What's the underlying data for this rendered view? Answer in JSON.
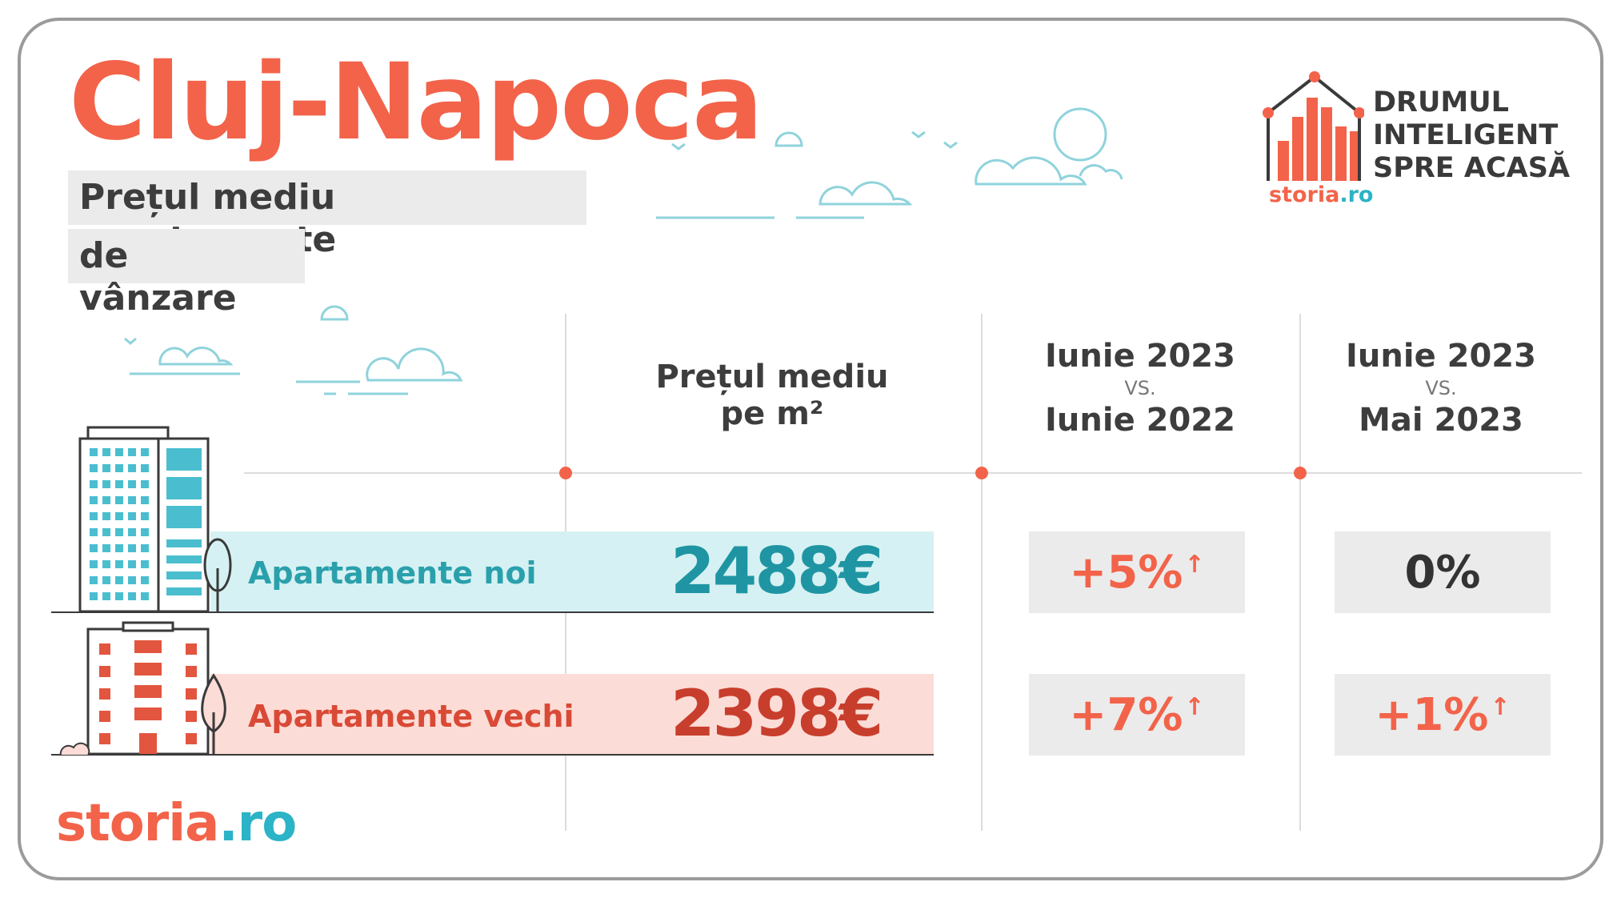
{
  "header": {
    "city": "Cluj-Napoca",
    "subtitle_line1": "Prețul mediu apartamente",
    "subtitle_line2": "de vânzare"
  },
  "brand": {
    "slogan_line1": "DRUMUL",
    "slogan_line2": "INTELIGENT",
    "slogan_line3": "SPRE ACASĂ",
    "logo_name": "storia",
    "logo_tld": ".ro"
  },
  "columns": {
    "price_head_line1": "Prețul mediu",
    "price_head_line2": "pe m²",
    "yoy_line1": "Iunie 2023",
    "yoy_vs": "VS.",
    "yoy_line2": "Iunie 2022",
    "mom_line1": "Iunie 2023",
    "mom_vs": "VS.",
    "mom_line2": "Mai 2023"
  },
  "rows": [
    {
      "label": "Apartamente noi",
      "price": "2488€",
      "yoy": "+5%",
      "yoy_arrow": "↑",
      "mom": "0%",
      "mom_arrow": ""
    },
    {
      "label": "Apartamente vechi",
      "price": "2398€",
      "yoy": "+7%",
      "yoy_arrow": "↑",
      "mom": "+1%",
      "mom_arrow": "↑"
    }
  ],
  "colors": {
    "accent": "#f2634a",
    "teal": "#2bb3c7",
    "new_band": "#d6f1f3",
    "old_band": "#fcdcd6",
    "box_grey": "#ebebeb"
  },
  "icons": [
    "house-bars-logo-icon",
    "cloud-icon",
    "bird-icon",
    "new-building-icon",
    "old-building-icon",
    "tree-icon",
    "bush-icon"
  ]
}
